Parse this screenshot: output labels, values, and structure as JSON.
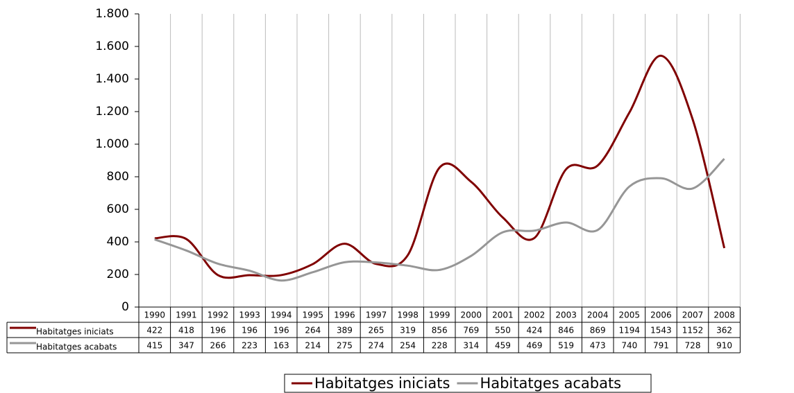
{
  "chart_data": {
    "type": "line",
    "categories": [
      "1990",
      "1991",
      "1992",
      "1993",
      "1994",
      "1995",
      "1996",
      "1997",
      "1998",
      "1999",
      "2000",
      "2001",
      "2002",
      "2003",
      "2004",
      "2005",
      "2006",
      "2007",
      "2008"
    ],
    "series": [
      {
        "name": "Habitatges iniciats",
        "color": "#800000",
        "values": [
          422,
          418,
          196,
          196,
          196,
          264,
          389,
          265,
          319,
          856,
          769,
          550,
          424,
          846,
          869,
          1194,
          1543,
          1152,
          362
        ]
      },
      {
        "name": "Habitatges acabats",
        "color": "#969696",
        "values": [
          415,
          347,
          266,
          223,
          163,
          214,
          275,
          274,
          254,
          228,
          314,
          459,
          469,
          519,
          473,
          740,
          791,
          728,
          910
        ]
      }
    ],
    "ylim": [
      0,
      1800
    ],
    "yticks": [
      0,
      200,
      400,
      600,
      800,
      {
        "value": 1000,
        "label": "1.000"
      },
      {
        "value": 1200,
        "label": "1.200"
      },
      {
        "value": 1400,
        "label": "1.400"
      },
      {
        "value": 1600,
        "label": "1.600"
      },
      {
        "value": 1800,
        "label": "1.800"
      }
    ],
    "grid": true,
    "smooth": true,
    "legend": "bottom",
    "data_table": true
  }
}
